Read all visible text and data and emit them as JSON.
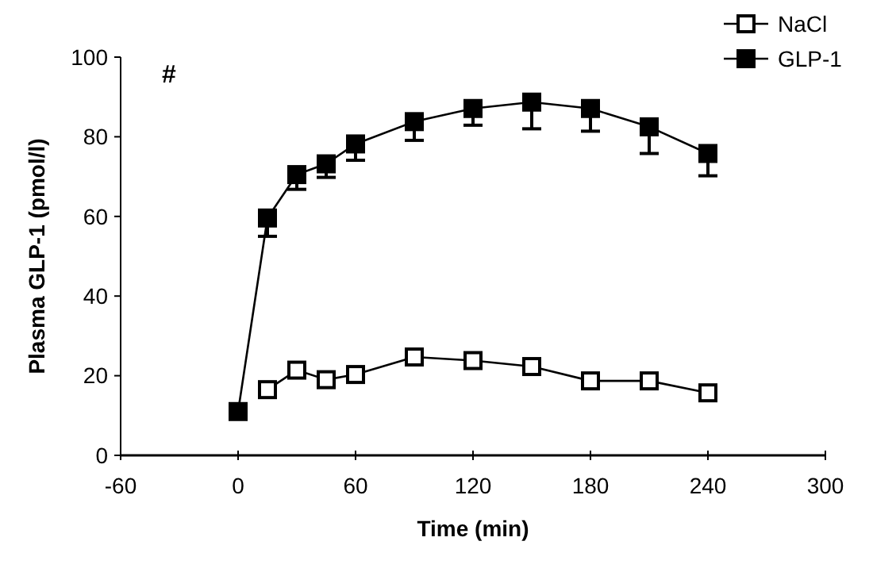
{
  "chart_data": {
    "type": "line",
    "xlabel": "Time (min)",
    "ylabel": "Plasma GLP-1 (pmol/l)",
    "x": [
      0,
      15,
      30,
      45,
      60,
      90,
      120,
      150,
      180,
      210,
      240
    ],
    "series": [
      {
        "name": "NaCl",
        "color": "#000000",
        "marker": "square",
        "values": [
          null,
          16.5,
          21.4,
          19,
          20.3,
          24.7,
          23.8,
          22.3,
          18.7,
          18.7,
          15.7
        ]
      },
      {
        "name": "GLP-1",
        "color": "#000000",
        "marker": "square",
        "values": [
          11,
          59.6,
          70.5,
          73.2,
          78.2,
          83.8,
          87.1,
          88.7,
          87.1,
          82.5,
          75.8
        ],
        "errors": [
          null,
          [
            55,
            59.6
          ],
          [
            66.8,
            70.5
          ],
          [
            69.8,
            73.2
          ],
          [
            74.1,
            78.2
          ],
          [
            79.1,
            83.8
          ],
          [
            82.9,
            87.1
          ],
          [
            82,
            88.7
          ],
          [
            81.4,
            87.1
          ],
          [
            75.8,
            82.5
          ],
          [
            70.2,
            75.8
          ]
        ]
      }
    ],
    "xlim": [
      -60,
      300
    ],
    "xticks": [
      -60,
      0,
      60,
      120,
      180,
      240,
      300
    ],
    "ylim": [
      0,
      100
    ],
    "yticks": [
      0,
      20,
      40,
      60,
      80,
      100
    ],
    "grid": false,
    "legend": "top right",
    "line_style": "solid",
    "annotations": [
      "#"
    ]
  }
}
